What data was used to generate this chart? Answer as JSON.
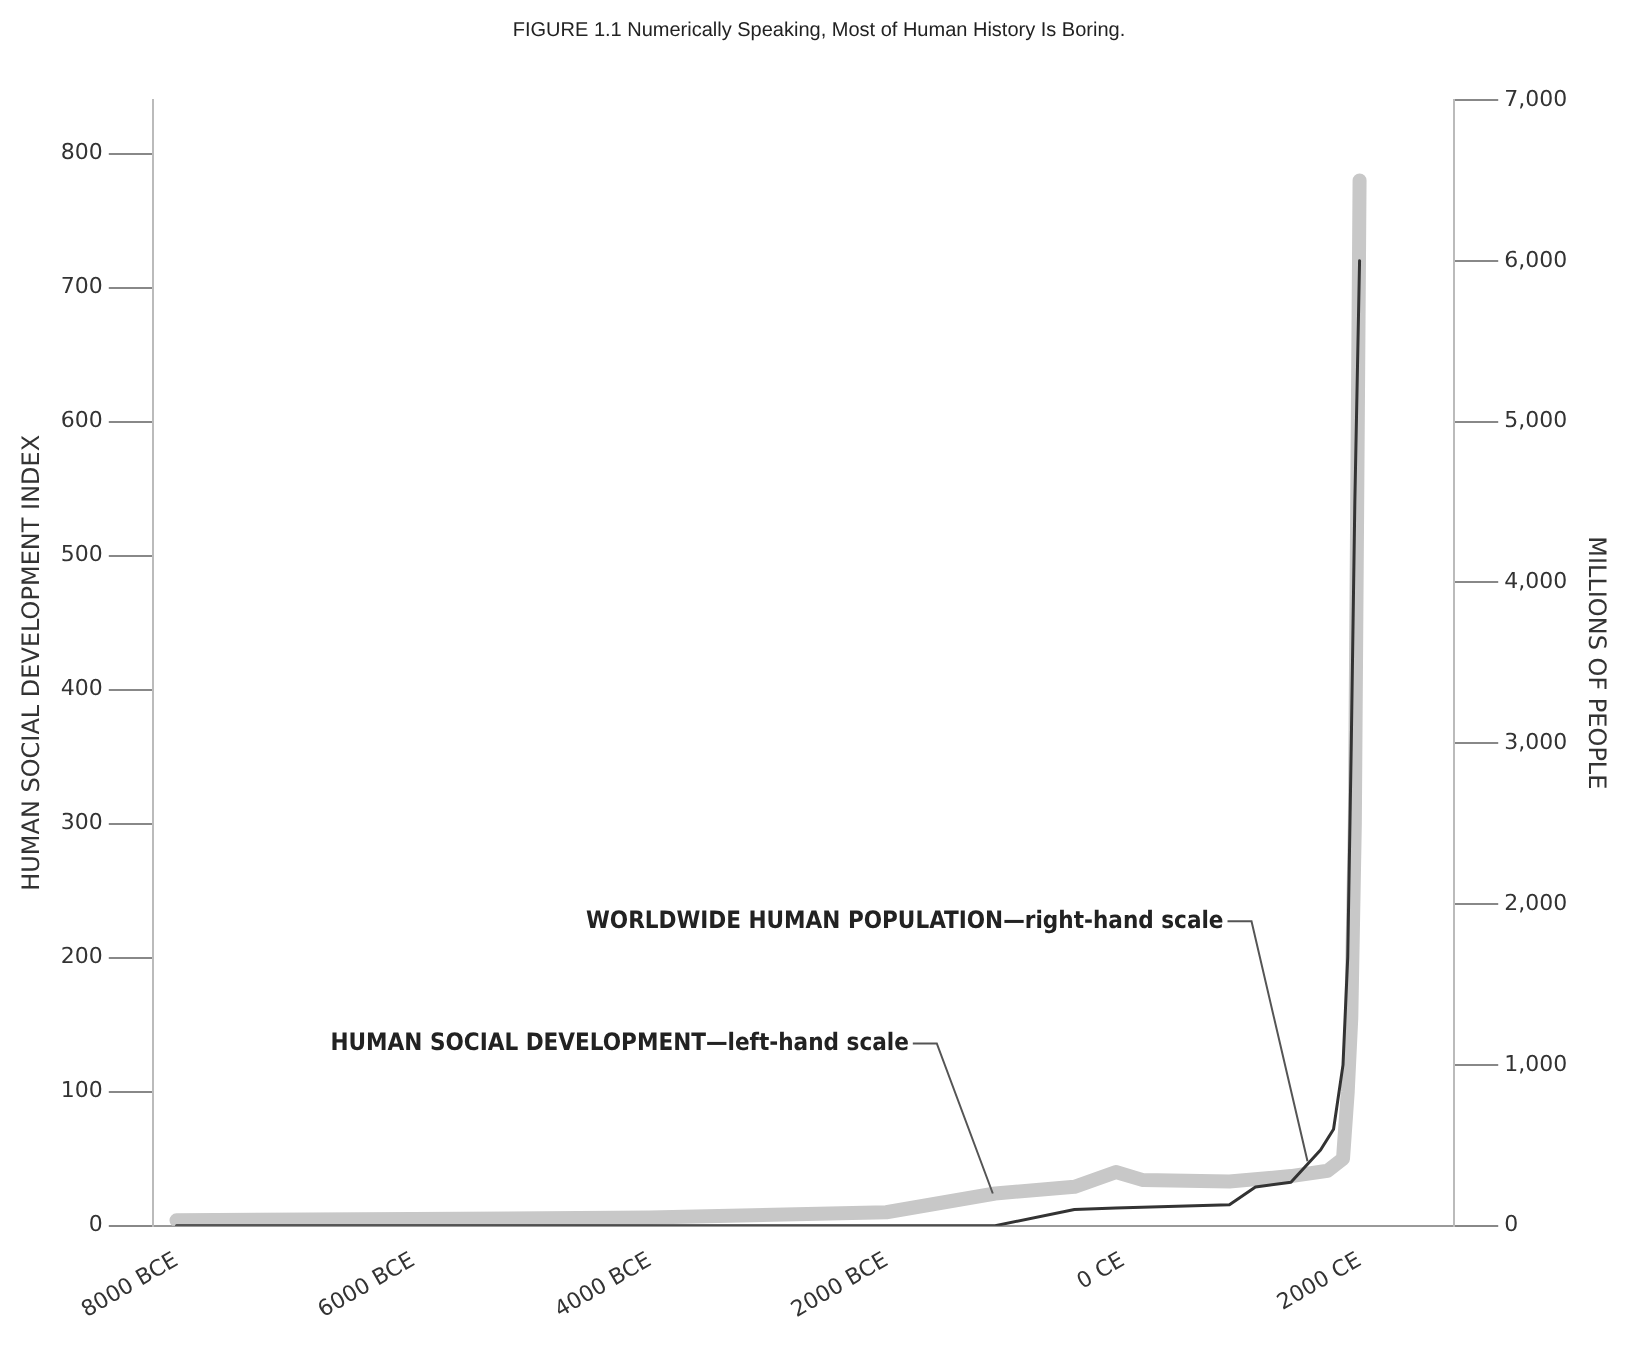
{
  "chart_data": {
    "type": "line",
    "title": "FIGURE 1.1 Numerically Speaking, Most of Human History Is Boring.",
    "ylabel": "HUMAN SOCIAL DEVELOPMENT INDEX",
    "y2label": "MILLIONS OF PEOPLE",
    "xlim": [
      -8200,
      2800
    ],
    "xticks": [
      {
        "value": -8000,
        "label": "8000 BCE"
      },
      {
        "value": -6000,
        "label": "6000 BCE"
      },
      {
        "value": -4000,
        "label": "4000 BCE"
      },
      {
        "value": -2000,
        "label": "2000 BCE"
      },
      {
        "value": 0,
        "label": "0 CE"
      },
      {
        "value": 2000,
        "label": "2000 CE"
      }
    ],
    "ylim": [
      0,
      840
    ],
    "yticks": [
      0,
      100,
      200,
      300,
      400,
      500,
      600,
      700,
      800
    ],
    "y2lim": [
      0,
      7000
    ],
    "y2ticks": [
      0,
      {
        "value": 1000,
        "label": "1,000"
      },
      {
        "value": 2000,
        "label": "2,000"
      },
      {
        "value": 3000,
        "label": "3,000"
      },
      {
        "value": 4000,
        "label": "4,000"
      },
      {
        "value": 5000,
        "label": "5,000"
      },
      {
        "value": 6000,
        "label": "6,000"
      },
      {
        "value": 7000,
        "label": "7,000"
      }
    ],
    "series": [
      {
        "axis": "y",
        "color": "#c8c8c8",
        "x": [
          -8000,
          -6000,
          -4000,
          -2000,
          -1080,
          -410,
          -60,
          170,
          900,
          1420,
          1730,
          1860,
          1900,
          1930,
          1960,
          2000
        ],
        "values": [
          4,
          5,
          6,
          10,
          24,
          29,
          40,
          34,
          33,
          37,
          41,
          50,
          100,
          155,
          300,
          780
        ]
      },
      {
        "axis": "y2",
        "color": "#333333",
        "x": [
          -8000,
          -4000,
          -2000,
          -1080,
          -410,
          -60,
          900,
          1120,
          1420,
          1670,
          1780,
          1860,
          1900,
          1930,
          1960,
          2000
        ],
        "values": [
          0,
          0,
          0,
          0,
          100,
          110,
          130,
          240,
          270,
          470,
          600,
          1000,
          1670,
          3000,
          4500,
          6000
        ]
      }
    ],
    "annotations": [
      {
        "text": "HUMAN SOCIAL DEVELOPMENT—left-hand scale",
        "x": -1100,
        "y": 24
      },
      {
        "text": "WORLDWIDE HUMAN POPULATION—right-hand scale",
        "x": 1560,
        "y": 48
      }
    ],
    "marker": "none",
    "grid": false,
    "legend": false
  }
}
